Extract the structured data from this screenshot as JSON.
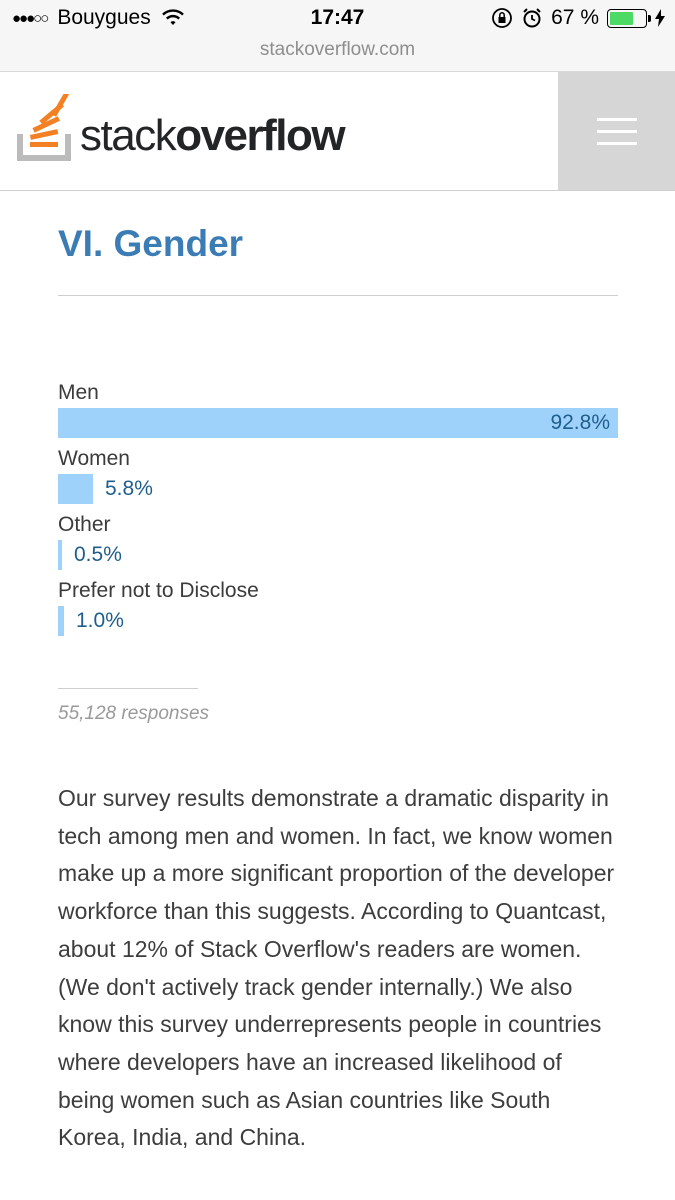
{
  "status_bar": {
    "signal": "●●●○○",
    "carrier": "Bouygues",
    "time": "17:47",
    "battery_percent": "67 %",
    "battery_level": 0.67
  },
  "url_bar": {
    "domain": "stackoverflow.com"
  },
  "header": {
    "logo_text_light": "stack",
    "logo_text_bold": "overflow",
    "menu_icon": "hamburger-menu-icon"
  },
  "section": {
    "title": "VI. Gender"
  },
  "chart_data": {
    "type": "bar",
    "orientation": "horizontal",
    "categories": [
      "Men",
      "Women",
      "Other",
      "Prefer not to Disclose"
    ],
    "values": [
      92.8,
      5.8,
      0.5,
      1.0
    ],
    "value_labels": [
      "92.8%",
      "5.8%",
      "0.5%",
      "1.0%"
    ],
    "xlim": [
      0,
      92.8
    ],
    "bar_color": "#9fd2fb",
    "label_color": "#1f5e8c"
  },
  "responses": "55,128 responses",
  "paragraph": "Our survey results demonstrate a dramatic disparity in tech among men and women. In fact, we know women make up a more significant proportion of the developer workforce than this suggests. According to Quantcast, about 12% of Stack Overflow's readers are women. (We don't actively track gender internally.) We also know this survey underrepresents people in countries where developers have an increased likelihood of being women such as Asian countries like South Korea, India, and China."
}
